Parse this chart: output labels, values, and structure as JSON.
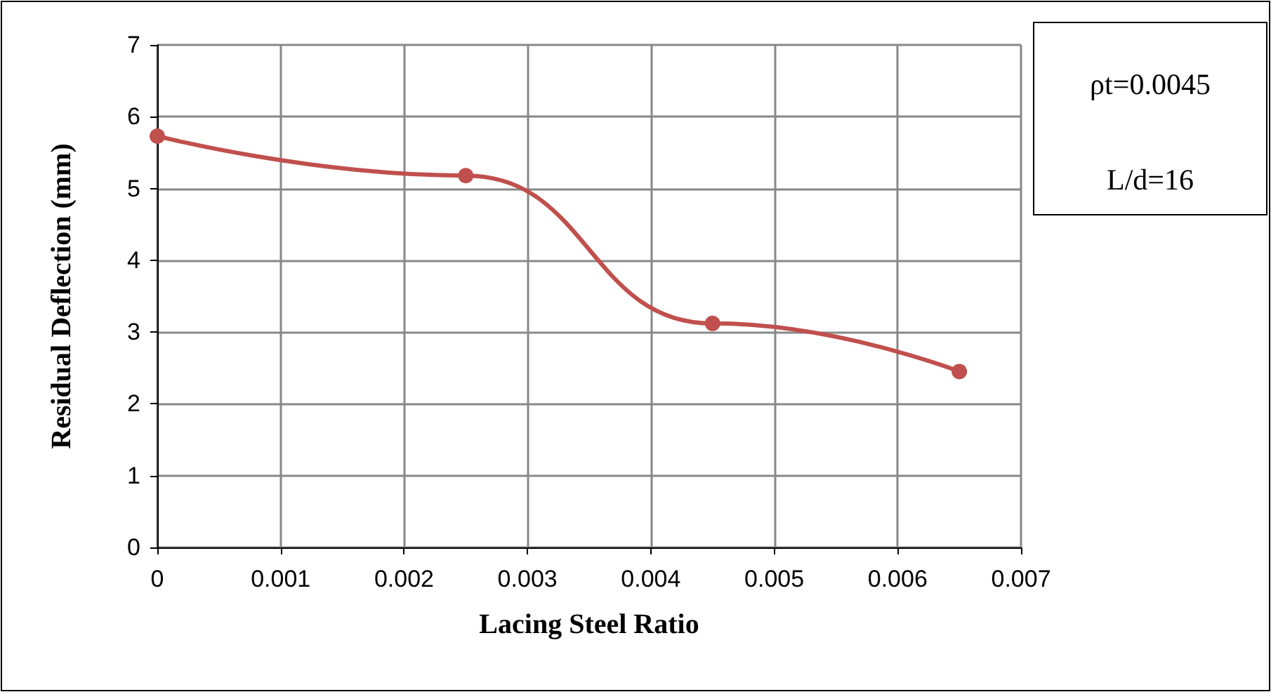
{
  "chart_data": {
    "type": "line",
    "xlabel": "Lacing Steel Ratio",
    "ylabel": "Residual Deflection (mm)",
    "annotations": [
      "ρt=0.0045",
      "L/d=16"
    ],
    "x": [
      0,
      0.0025,
      0.0045,
      0.0065
    ],
    "series": [
      {
        "color": "#c0504d",
        "values": [
          5.73,
          5.18,
          3.12,
          2.45
        ]
      }
    ],
    "xlim": [
      0,
      0.007
    ],
    "xticks": [
      0,
      0.001,
      0.002,
      0.003,
      0.004,
      0.005,
      0.006,
      0.007
    ],
    "ylim": [
      0,
      7
    ],
    "yticks": [
      0,
      1,
      2,
      3,
      4,
      5,
      6,
      7
    ],
    "grid": true,
    "marker": "circle",
    "line_style": "solid"
  }
}
